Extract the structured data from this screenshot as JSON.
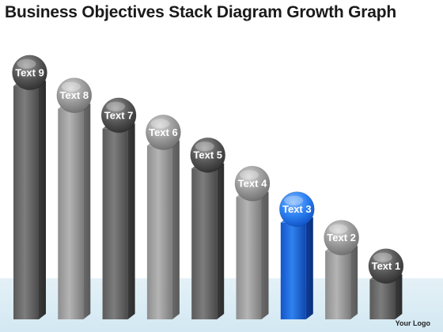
{
  "title": "Business Objectives Stack Diagram Growth Graph",
  "logo_text": "Your Logo",
  "colors": {
    "bar_gray": "#8a8a8a",
    "bar_highlight": "#1f6fe0",
    "floor": "#d8ebf4"
  },
  "bars": [
    {
      "label": "Text 9",
      "tone": "dark",
      "level": 0.82
    },
    {
      "label": "Text 8",
      "tone": "light",
      "level": 0.74
    },
    {
      "label": "Text 7",
      "tone": "dark",
      "level": 0.67
    },
    {
      "label": "Text 6",
      "tone": "light",
      "level": 0.61
    },
    {
      "label": "Text 5",
      "tone": "dark",
      "level": 0.53
    },
    {
      "label": "Text 4",
      "tone": "light",
      "level": 0.43
    },
    {
      "label": "Text 3",
      "tone": "highlight",
      "level": 0.34
    },
    {
      "label": "Text 2",
      "tone": "light",
      "level": 0.24
    },
    {
      "label": "Text 1",
      "tone": "dark",
      "level": 0.14
    }
  ]
}
